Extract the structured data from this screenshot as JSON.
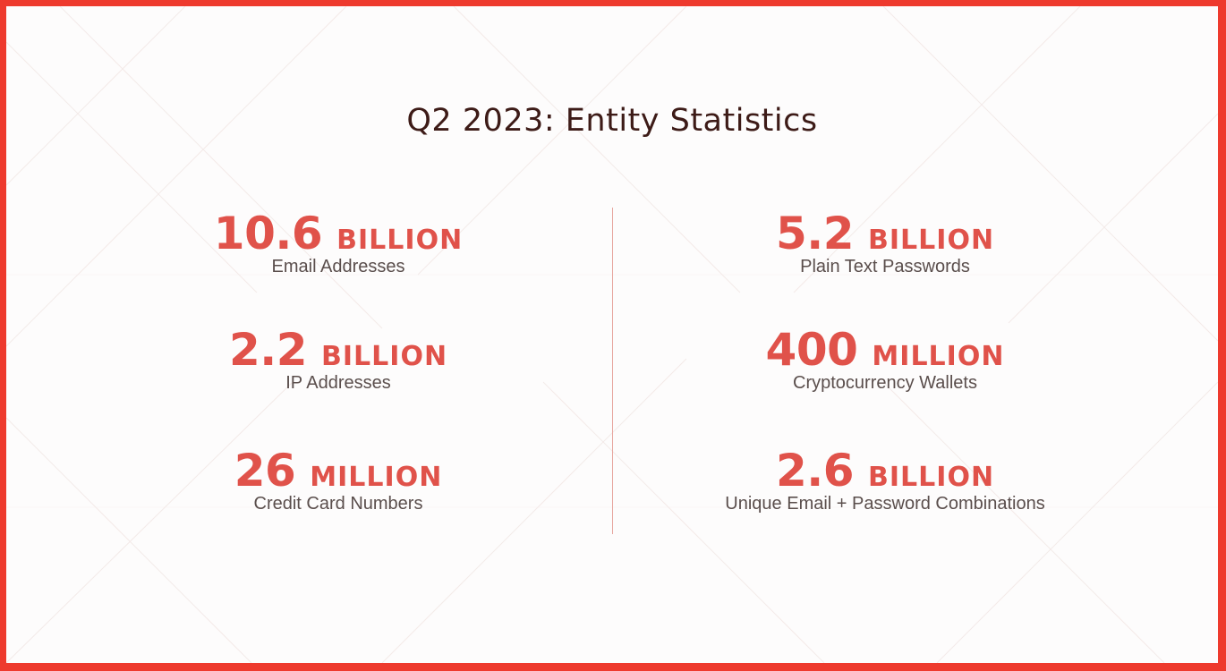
{
  "colors": {
    "border": "#ee3a2d",
    "accent": "#e0524a",
    "title": "#3d1b17",
    "label": "#5a4e4c",
    "divider": "#e7a59d"
  },
  "header": {
    "title": "Q2 2023: Entity Statistics"
  },
  "stats": {
    "left": [
      {
        "value": "10.6",
        "unit": "BILLION",
        "label": "Email Addresses"
      },
      {
        "value": "2.2",
        "unit": "BILLION",
        "label": "IP Addresses"
      },
      {
        "value": "26",
        "unit": "MILLION",
        "label": "Credit Card Numbers"
      }
    ],
    "right": [
      {
        "value": "5.2",
        "unit": "BILLION",
        "label": "Plain Text Passwords"
      },
      {
        "value": "400",
        "unit": "MILLION",
        "label": "Cryptocurrency Wallets"
      },
      {
        "value": "2.6",
        "unit": "BILLION",
        "label": "Unique Email + Password Combinations"
      }
    ]
  }
}
